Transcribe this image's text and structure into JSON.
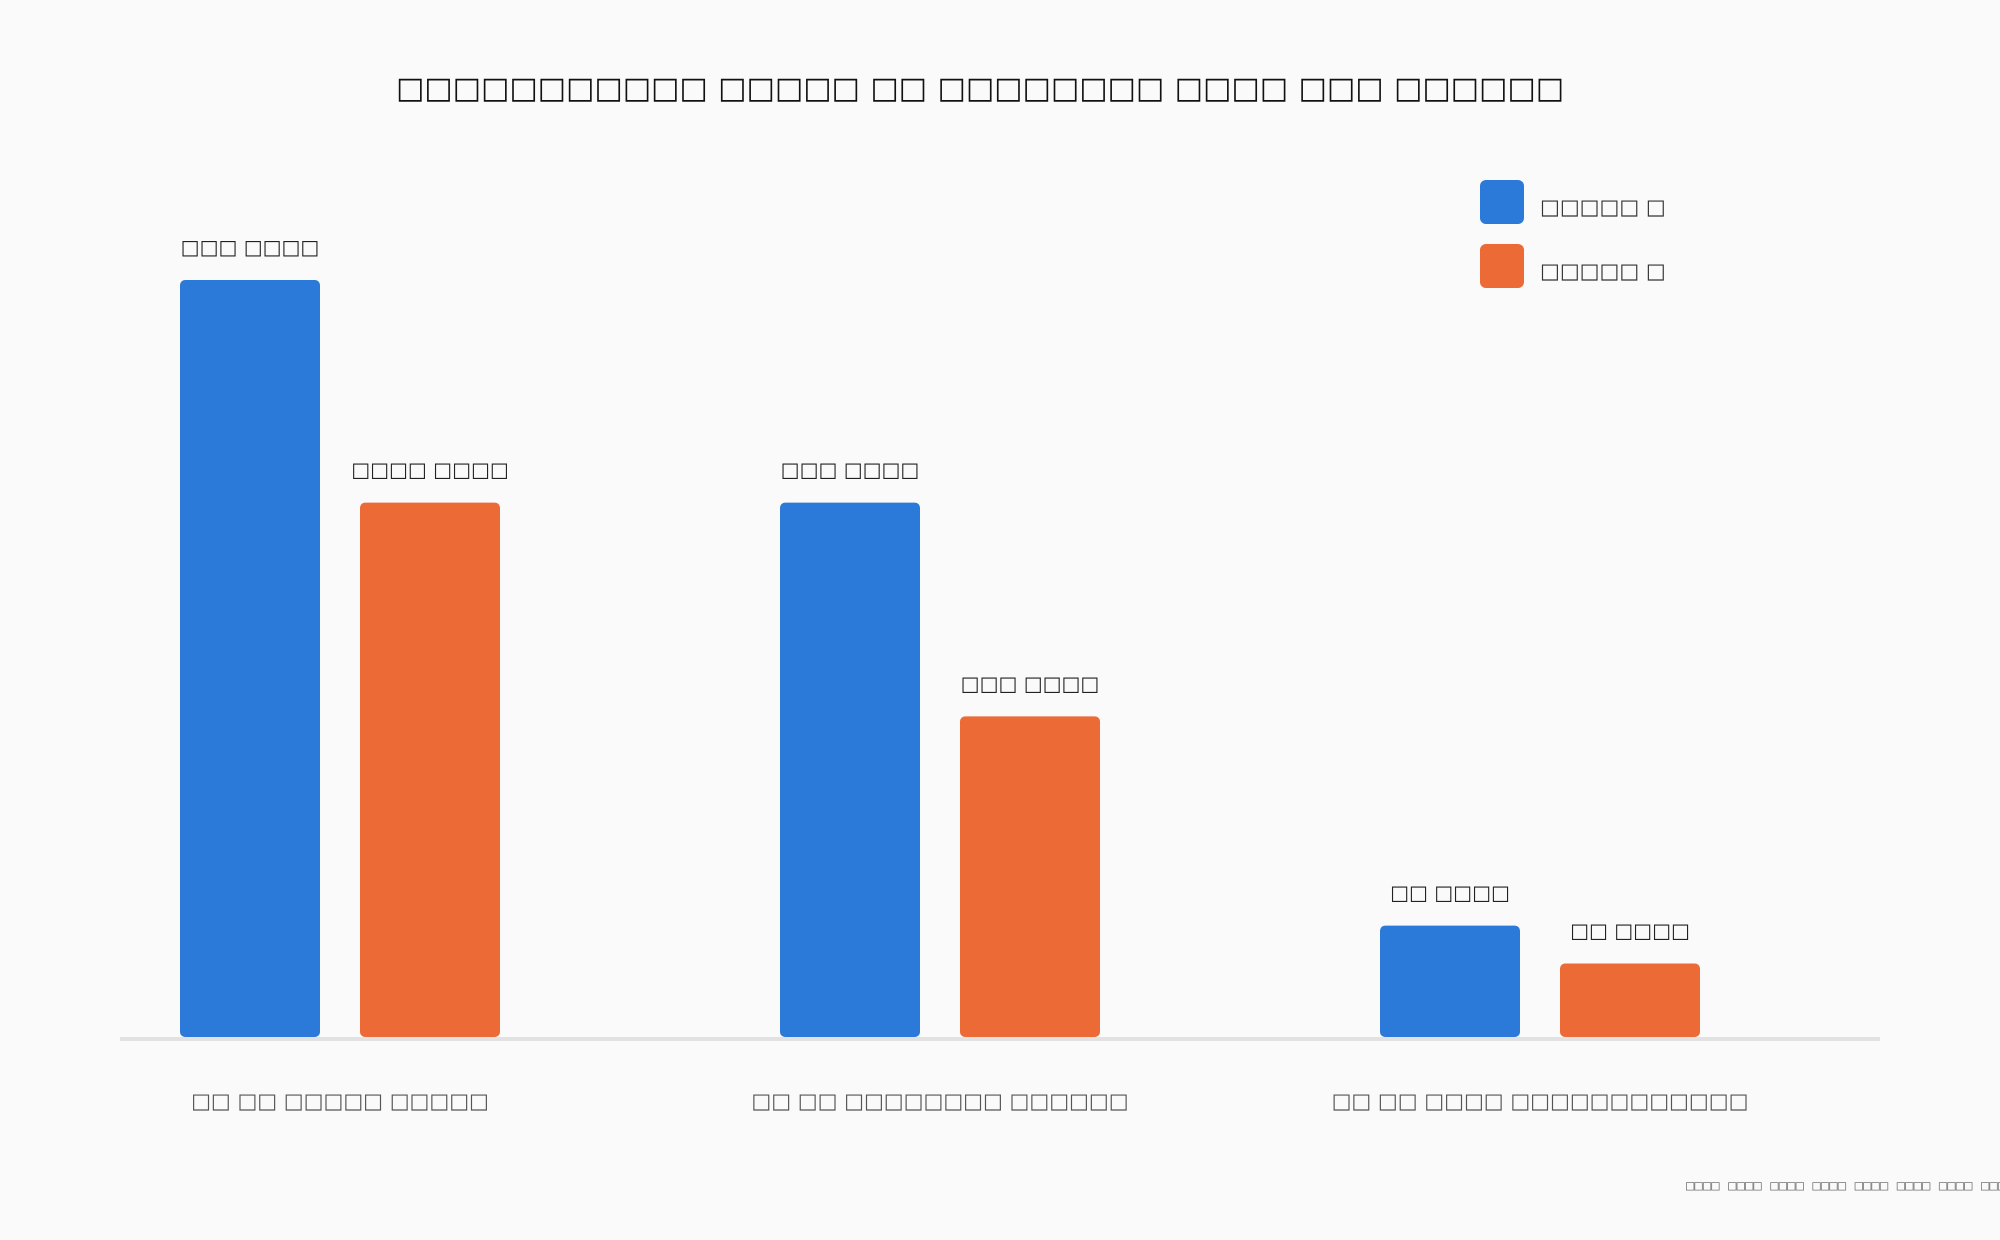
{
  "chart_data": {
    "type": "bar",
    "title": "□□□□□□□□□□□ □□□□□ □□ □□□□□□□□ □□□□ □□□ □□□□□□",
    "categories": [
      "□□ □□ □□□□□ □□□□□",
      "□□ □□ □□□□□□□□ □□□□□□",
      "□□ □□ □□□□ □□□□□□□□□□□□"
    ],
    "series": [
      {
        "name": "□□□□□ □",
        "color": "#2b79d8",
        "values": [
          340,
          240,
          50
        ],
        "labels": [
          "□□□ □□□□",
          "□□□ □□□□",
          "□□ □□□□"
        ]
      },
      {
        "name": "□□□□□ □",
        "color": "#eb6a35",
        "values": [
          240,
          144,
          33
        ],
        "labels": [
          "□□□□ □□□□",
          "□□□ □□□□",
          "□□ □□□□"
        ]
      }
    ],
    "ylim": [
      0,
      340
    ],
    "xlabel": "",
    "ylabel": "",
    "grid": false,
    "legend_position": "top-right",
    "footer": "□□□□ □□□□ □□□□ □□□□ □□□□ □□□□ □□□□ □□□"
  }
}
